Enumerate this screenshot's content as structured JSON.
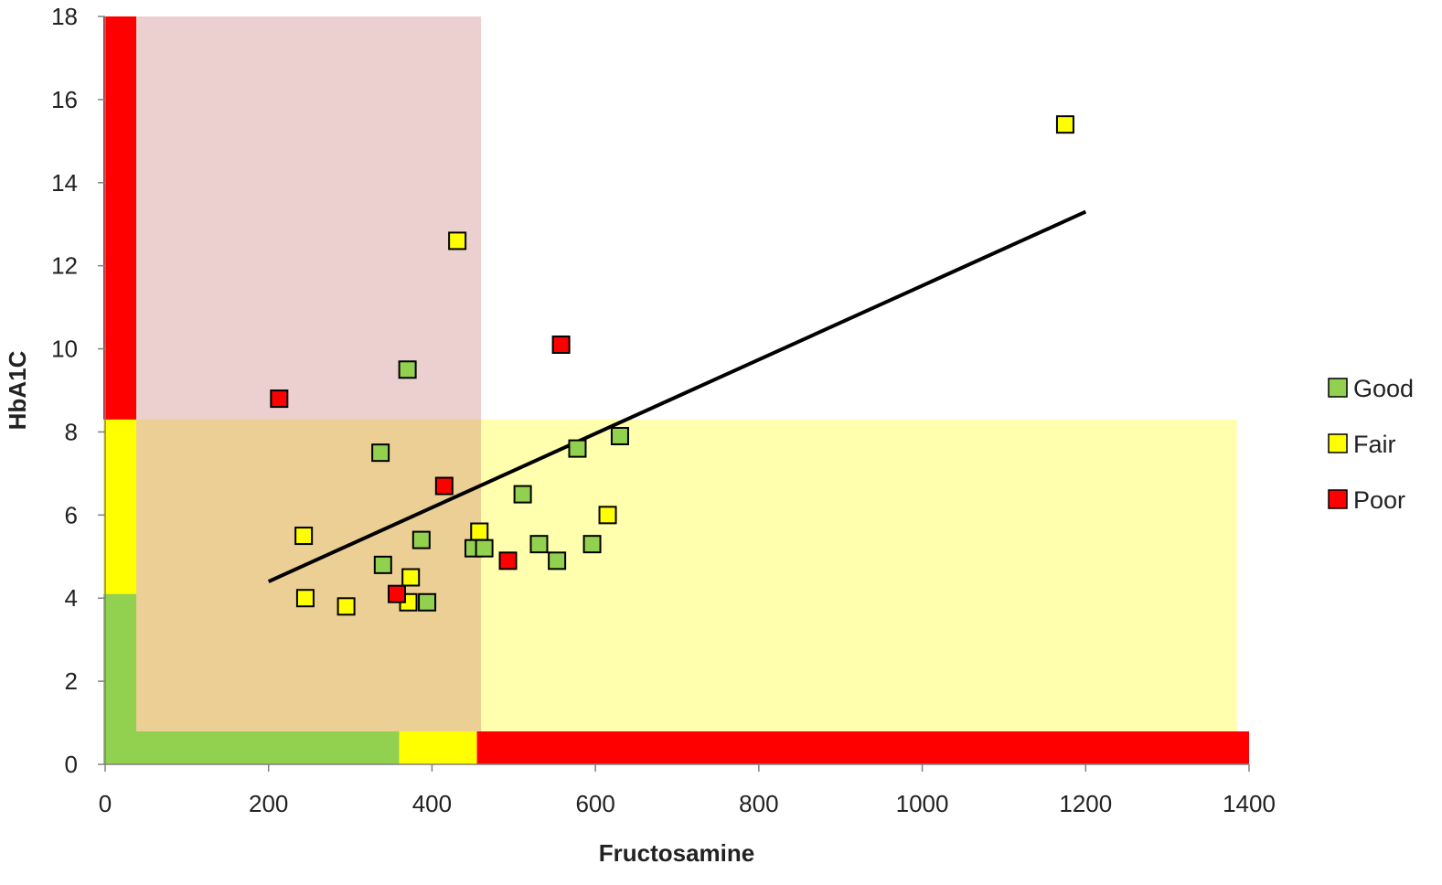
{
  "chart_data": {
    "type": "scatter",
    "title": "",
    "xlabel": "Fructosamine",
    "ylabel": "HbA1C",
    "xlim": [
      0,
      1400
    ],
    "ylim": [
      0,
      18
    ],
    "x_ticks": [
      0,
      200,
      400,
      600,
      800,
      1000,
      1200,
      1400
    ],
    "x_tick_labels": [
      "0",
      "200",
      "400",
      "600",
      "800",
      "1000",
      "1200",
      "1400"
    ],
    "y_ticks": [
      0,
      2,
      4,
      6,
      8,
      10,
      12,
      14,
      16,
      18
    ],
    "y_tick_labels": [
      "0",
      "2",
      "4",
      "6",
      "8",
      "10",
      "12",
      "14",
      "16",
      "18"
    ],
    "grid": false,
    "legend_position": "right",
    "series": [
      {
        "name": "Good",
        "color": "#92D050",
        "points": [
          {
            "x": 370,
            "y": 9.5
          },
          {
            "x": 337,
            "y": 7.5
          },
          {
            "x": 578,
            "y": 7.6
          },
          {
            "x": 630,
            "y": 7.9
          },
          {
            "x": 511,
            "y": 6.5
          },
          {
            "x": 387,
            "y": 5.4
          },
          {
            "x": 340,
            "y": 4.8
          },
          {
            "x": 451,
            "y": 5.2
          },
          {
            "x": 464,
            "y": 5.2
          },
          {
            "x": 531,
            "y": 5.3
          },
          {
            "x": 553,
            "y": 4.9
          },
          {
            "x": 596,
            "y": 5.3
          },
          {
            "x": 394,
            "y": 3.9
          }
        ]
      },
      {
        "name": "Fair",
        "color": "#FFFF00",
        "points": [
          {
            "x": 1175,
            "y": 15.4
          },
          {
            "x": 431,
            "y": 12.6
          },
          {
            "x": 243,
            "y": 5.5
          },
          {
            "x": 458,
            "y": 5.6
          },
          {
            "x": 615,
            "y": 6.0
          },
          {
            "x": 245,
            "y": 4.0
          },
          {
            "x": 295,
            "y": 3.8
          },
          {
            "x": 374,
            "y": 4.5
          },
          {
            "x": 371,
            "y": 3.9
          }
        ]
      },
      {
        "name": "Poor",
        "color": "#FF0000",
        "points": [
          {
            "x": 213,
            "y": 8.8
          },
          {
            "x": 558,
            "y": 10.1
          },
          {
            "x": 415,
            "y": 6.7
          },
          {
            "x": 493,
            "y": 4.9
          },
          {
            "x": 357,
            "y": 4.1
          }
        ]
      }
    ],
    "trendline": {
      "color": "#000000",
      "points": [
        {
          "x": 200,
          "y": 4.4
        },
        {
          "x": 1200,
          "y": 13.3
        }
      ]
    },
    "bands": [
      {
        "name": "x-good",
        "color": "#92D050",
        "x": [
          0,
          360
        ]
      },
      {
        "name": "x-fair",
        "color": "#FFFF00",
        "x": [
          360,
          455
        ]
      },
      {
        "name": "x-poor",
        "color": "#FF0000",
        "x": [
          455,
          1400
        ]
      },
      {
        "name": "y-good",
        "color": "#92D050",
        "y": [
          0,
          4.1
        ]
      },
      {
        "name": "y-fair",
        "color": "#FFFF00",
        "y": [
          4.1,
          8.3
        ]
      },
      {
        "name": "y-poor",
        "color": "#FF0000",
        "y": [
          8.3,
          18
        ]
      }
    ],
    "regions": [
      {
        "name": "fair-region",
        "color": "#FFFF99",
        "x": [
          0,
          1385
        ],
        "y": [
          0.7,
          8.3
        ]
      },
      {
        "name": "poor-region",
        "color": "#C06060",
        "x": [
          0,
          460
        ],
        "y": [
          0.7,
          18
        ]
      }
    ]
  }
}
